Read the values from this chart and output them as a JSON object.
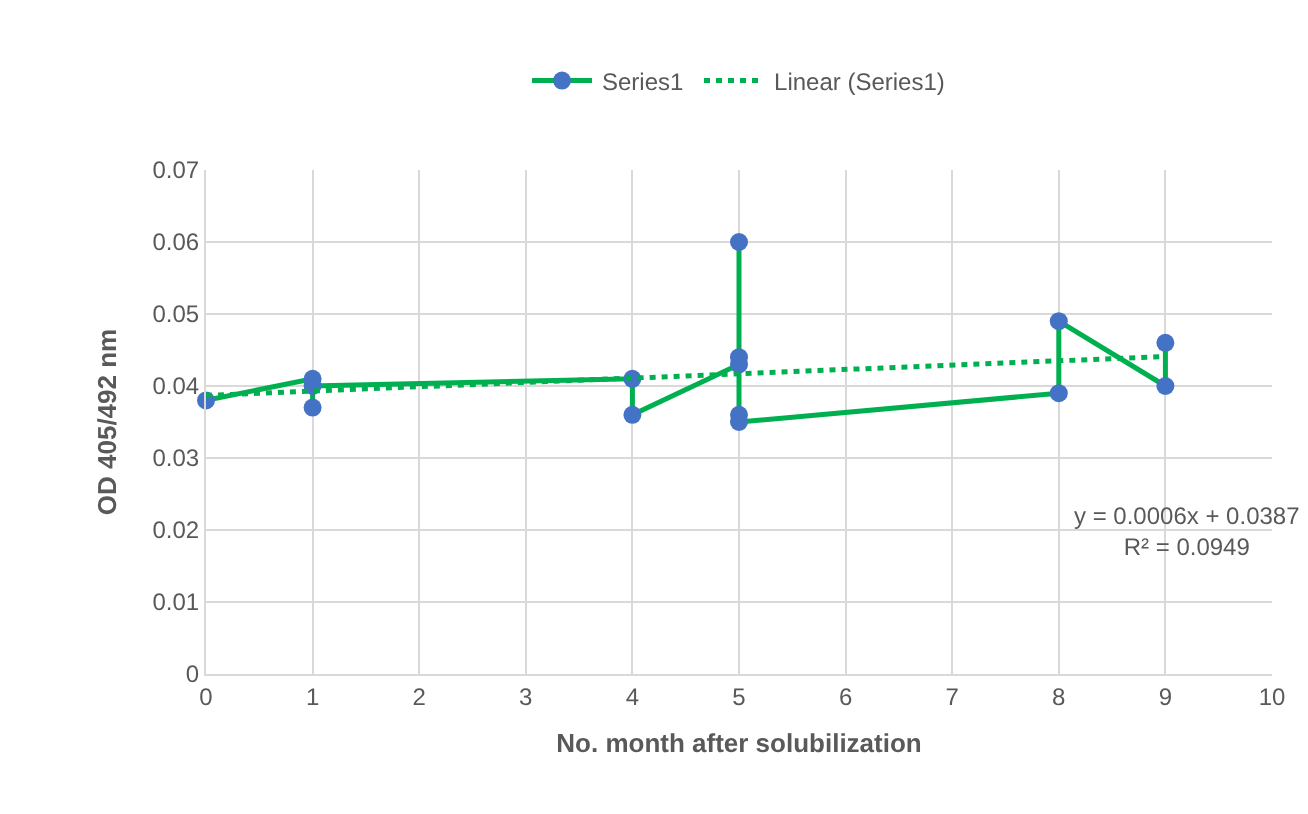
{
  "chart_data": {
    "type": "line",
    "xlabel": "No. month after solubilization",
    "ylabel": "OD 405/492 nm",
    "xlim": [
      0,
      10
    ],
    "xticks": [
      0,
      1,
      2,
      3,
      4,
      5,
      6,
      7,
      8,
      9,
      10
    ],
    "ylim": [
      0,
      0.07
    ],
    "yticks": [
      0,
      0.01,
      0.02,
      0.03,
      0.04,
      0.05,
      0.06,
      0.07
    ],
    "grid": true,
    "legend": "top",
    "series": [
      {
        "name": "Series1",
        "marker": "circle",
        "line_style": "solid",
        "color": "#00b050",
        "colors": [
          "#4472c4",
          "#4472c4",
          "#4472c4",
          "#4472c4",
          "#4472c4",
          "#4472c4",
          "#4472c4",
          "#4472c4",
          "#4472c4",
          "#4472c4",
          "#4472c4",
          "#4472c4",
          "#4472c4",
          "#4472c4",
          "#4472c4"
        ],
        "x": [
          0,
          1,
          1,
          1,
          4,
          4,
          5,
          5,
          5,
          5,
          5,
          8,
          8,
          9,
          9
        ],
        "values": [
          0.038,
          0.041,
          0.037,
          0.04,
          0.041,
          0.036,
          0.043,
          0.044,
          0.06,
          0.036,
          0.035,
          0.039,
          0.049,
          0.04,
          0.046
        ]
      },
      {
        "name": "Linear (Series1)",
        "marker": "none",
        "line_style": "dotted",
        "color": "#00b050",
        "x": [
          0,
          9
        ],
        "values": [
          0.0387,
          0.0441
        ]
      }
    ],
    "annotations": [
      "y = 0.0006x + 0.0387\nR² = 0.0949"
    ]
  }
}
